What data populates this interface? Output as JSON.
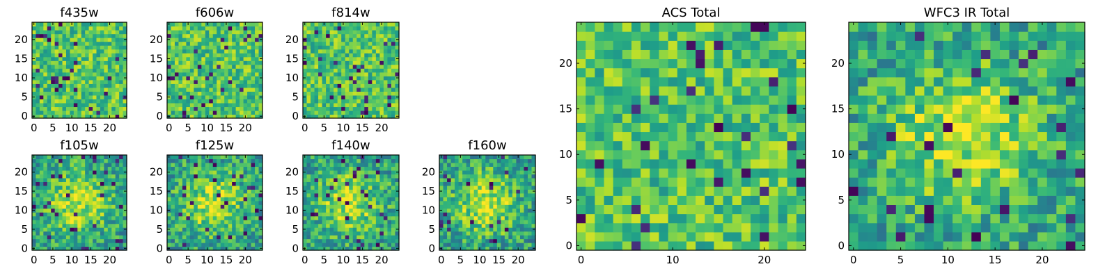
{
  "chart_data": [
    {
      "type": "heatmap",
      "title": "f435w",
      "grid_size": 25,
      "xticks": [
        0,
        5,
        10,
        15,
        20
      ],
      "yticks": [
        0,
        5,
        10,
        15,
        20
      ],
      "xlim": [
        -0.5,
        24.5
      ],
      "ylim": [
        -0.5,
        24.5
      ],
      "colormap": "viridis",
      "pattern": "noise",
      "seed": 11
    },
    {
      "type": "heatmap",
      "title": "f606w",
      "grid_size": 25,
      "xticks": [
        0,
        5,
        10,
        15,
        20
      ],
      "yticks": [
        0,
        5,
        10,
        15,
        20
      ],
      "xlim": [
        -0.5,
        24.5
      ],
      "ylim": [
        -0.5,
        24.5
      ],
      "colormap": "viridis",
      "pattern": "noise",
      "seed": 23
    },
    {
      "type": "heatmap",
      "title": "f814w",
      "grid_size": 25,
      "xticks": [
        0,
        5,
        10,
        15,
        20
      ],
      "yticks": [
        0,
        5,
        10,
        15,
        20
      ],
      "xlim": [
        -0.5,
        24.5
      ],
      "ylim": [
        -0.5,
        24.5
      ],
      "colormap": "viridis",
      "pattern": "noise",
      "seed": 37
    },
    {
      "type": "heatmap",
      "title": "f105w",
      "grid_size": 25,
      "xticks": [
        0,
        5,
        10,
        15,
        20
      ],
      "yticks": [
        0,
        5,
        10,
        15,
        20
      ],
      "xlim": [
        -0.5,
        24.5
      ],
      "ylim": [
        -0.5,
        24.5
      ],
      "colormap": "viridis",
      "pattern": "blob",
      "seed": 41
    },
    {
      "type": "heatmap",
      "title": "f125w",
      "grid_size": 25,
      "xticks": [
        0,
        5,
        10,
        15,
        20
      ],
      "yticks": [
        0,
        5,
        10,
        15,
        20
      ],
      "xlim": [
        -0.5,
        24.5
      ],
      "ylim": [
        -0.5,
        24.5
      ],
      "colormap": "viridis",
      "pattern": "blob",
      "seed": 53
    },
    {
      "type": "heatmap",
      "title": "f140w",
      "grid_size": 25,
      "xticks": [
        0,
        5,
        10,
        15,
        20
      ],
      "yticks": [
        0,
        5,
        10,
        15,
        20
      ],
      "xlim": [
        -0.5,
        24.5
      ],
      "ylim": [
        -0.5,
        24.5
      ],
      "colormap": "viridis",
      "pattern": "blob",
      "seed": 67
    },
    {
      "type": "heatmap",
      "title": "f160w",
      "grid_size": 25,
      "xticks": [
        0,
        5,
        10,
        15,
        20
      ],
      "yticks": [
        0,
        5,
        10,
        15,
        20
      ],
      "xlim": [
        -0.5,
        24.5
      ],
      "ylim": [
        -0.5,
        24.5
      ],
      "colormap": "viridis",
      "pattern": "blob",
      "seed": 79
    },
    {
      "type": "heatmap",
      "title": "ACS Total",
      "grid_size": 25,
      "xticks": [
        0,
        10,
        20
      ],
      "yticks": [
        0,
        5,
        10,
        15,
        20
      ],
      "xlim": [
        -0.5,
        24.5
      ],
      "ylim": [
        -0.5,
        24.5
      ],
      "colormap": "viridis",
      "pattern": "noise",
      "seed": 97
    },
    {
      "type": "heatmap",
      "title": "WFC3 IR Total",
      "grid_size": 25,
      "xticks": [
        0,
        5,
        10,
        15,
        20
      ],
      "yticks": [
        0,
        5,
        10,
        15,
        20
      ],
      "xlim": [
        -0.5,
        24.5
      ],
      "ylim": [
        -0.5,
        24.5
      ],
      "colormap": "viridis",
      "pattern": "blob",
      "seed": 113
    }
  ]
}
